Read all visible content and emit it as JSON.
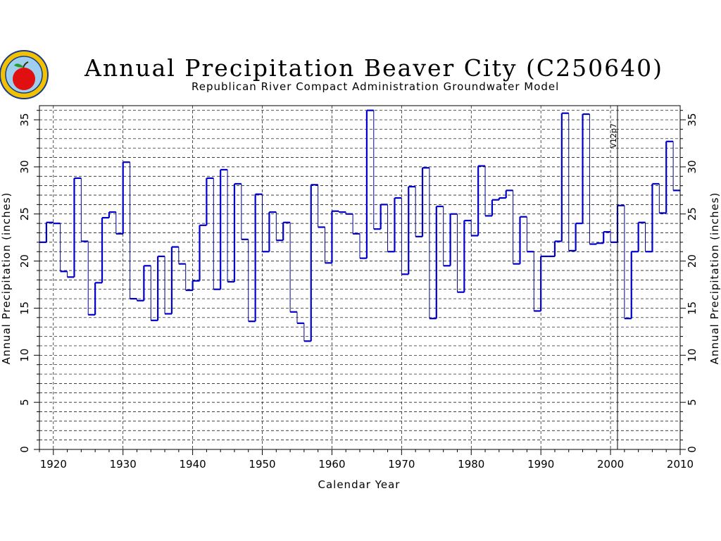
{
  "chart_data": {
    "type": "line",
    "style": "step",
    "title": "Annual Precipitation Beaver City (C250640)",
    "subtitle": "Republican River Compact Administration Groundwater Model",
    "xlabel": "Calendar Year",
    "ylabel": "Annual Precipitation (inches)",
    "xlim": [
      1918,
      2010
    ],
    "ylim": [
      0,
      36.5
    ],
    "x_ticks": [
      "1920",
      "1930",
      "1940",
      "1950",
      "1960",
      "1970",
      "1980",
      "1990",
      "2000",
      "2010"
    ],
    "y_ticks": [
      "0",
      "5",
      "10",
      "15",
      "20",
      "25",
      "30",
      "35"
    ],
    "grid": true,
    "legend": "none",
    "colors": {
      "series": "#0000cc",
      "thin_segments": "#000088",
      "grid": "#000000",
      "marker_line": "#000000"
    },
    "annotations": [
      {
        "text": "V12p7",
        "x": 2001
      }
    ],
    "x": [
      1918,
      1919,
      1920,
      1921,
      1922,
      1923,
      1924,
      1925,
      1926,
      1927,
      1928,
      1929,
      1930,
      1931,
      1932,
      1933,
      1934,
      1935,
      1936,
      1937,
      1938,
      1939,
      1940,
      1941,
      1942,
      1943,
      1944,
      1945,
      1946,
      1947,
      1948,
      1949,
      1950,
      1951,
      1952,
      1953,
      1954,
      1955,
      1956,
      1957,
      1958,
      1959,
      1960,
      1961,
      1962,
      1963,
      1964,
      1965,
      1966,
      1967,
      1968,
      1969,
      1970,
      1971,
      1972,
      1973,
      1974,
      1975,
      1976,
      1977,
      1978,
      1979,
      1980,
      1981,
      1982,
      1983,
      1984,
      1985,
      1986,
      1987,
      1988,
      1989,
      1990,
      1991,
      1992,
      1993,
      1994,
      1995,
      1996,
      1997,
      1998,
      1999,
      2000,
      2001,
      2002,
      2003,
      2004,
      2005,
      2006,
      2007,
      2008,
      2009
    ],
    "series": [
      {
        "values": [
          22.0,
          24.1,
          24.0,
          18.9,
          18.3,
          28.8,
          22.1,
          14.3,
          17.7,
          24.6,
          25.2,
          22.9,
          30.5,
          16.0,
          15.8,
          19.5,
          13.7,
          20.5,
          14.4,
          21.5,
          19.7,
          16.9,
          17.9,
          23.8,
          28.8,
          17.0,
          29.7,
          17.8,
          28.2,
          22.3,
          13.6,
          27.1,
          21.0,
          25.2,
          22.2,
          24.1,
          14.6,
          13.4,
          11.5,
          28.1,
          23.6,
          19.8,
          25.3,
          25.2,
          25.0,
          22.9,
          20.3,
          36.0,
          23.4,
          26.0,
          21.0,
          26.7,
          18.6,
          27.9,
          22.6,
          29.9,
          13.9,
          25.8,
          19.5,
          25.0,
          16.7,
          24.3,
          22.7,
          30.1,
          24.8,
          26.5,
          26.7,
          27.5,
          19.7,
          24.7,
          21.0,
          14.7,
          20.5,
          20.5,
          22.1,
          35.7,
          21.1,
          24.0,
          35.6,
          21.8,
          21.9,
          23.1,
          22.0,
          25.9,
          13.9,
          21.0,
          24.1,
          21.0,
          28.2,
          25.1,
          32.7,
          27.5
        ]
      }
    ]
  }
}
